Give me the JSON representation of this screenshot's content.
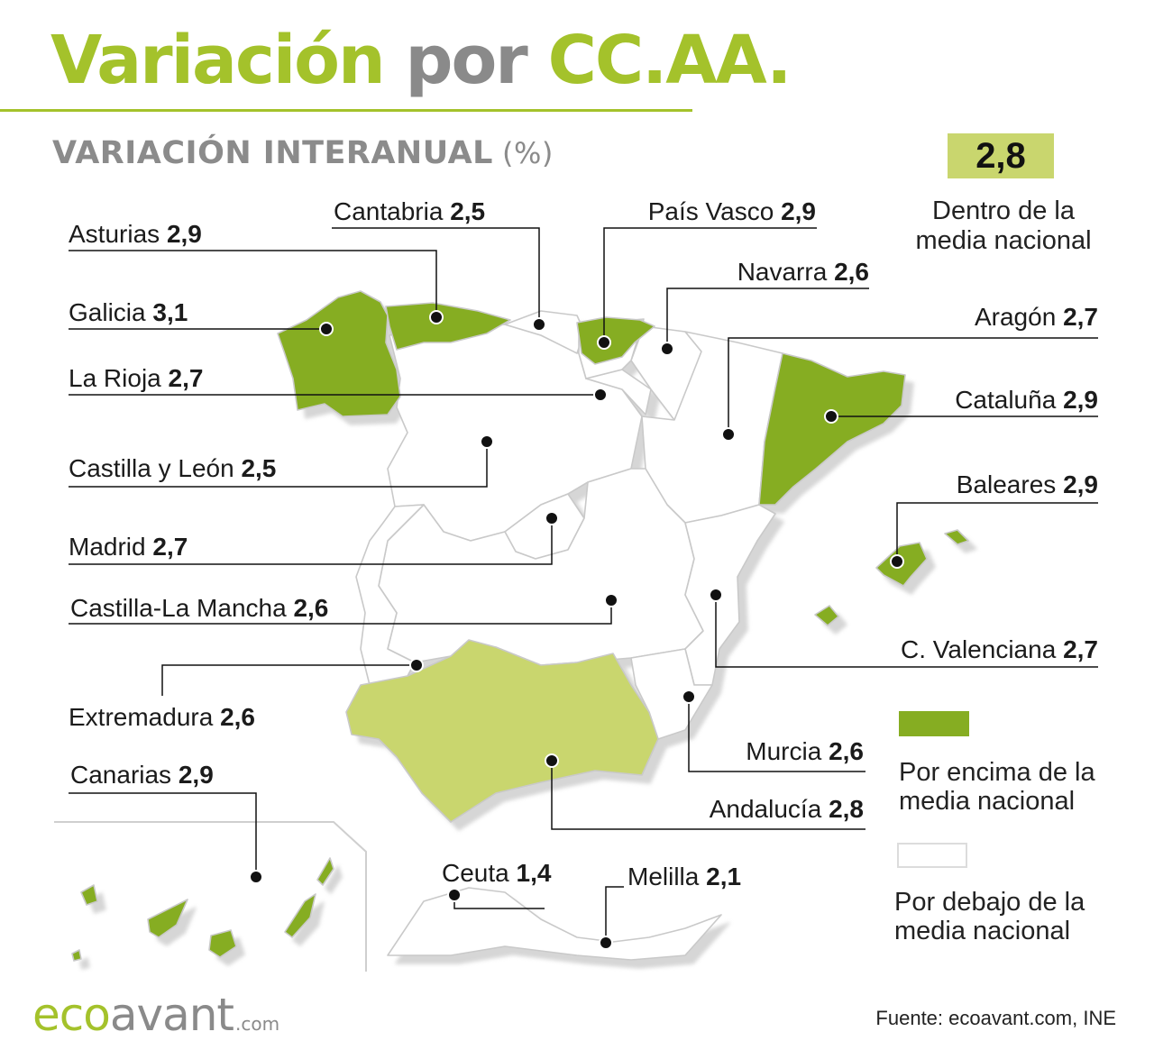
{
  "title": {
    "part1": "Variación",
    "part2": "por",
    "part3": "CC.AA."
  },
  "subtitle": {
    "text": "VARIACIÓN INTERANUAL",
    "unit": "(%)"
  },
  "national": {
    "value": "2,8",
    "caption": "Dentro de la media nacional"
  },
  "regions": {
    "asturias": {
      "name": "Asturias",
      "value": "2,9"
    },
    "cantabria": {
      "name": "Cantabria",
      "value": "2,5"
    },
    "pais_vasco": {
      "name": "País Vasco",
      "value": "2,9"
    },
    "navarra": {
      "name": "Navarra",
      "value": "2,6"
    },
    "galicia": {
      "name": "Galicia",
      "value": "3,1"
    },
    "aragon": {
      "name": "Aragón",
      "value": "2,7"
    },
    "la_rioja": {
      "name": "La Rioja",
      "value": "2,7"
    },
    "cataluna": {
      "name": "Cataluña",
      "value": "2,9"
    },
    "castilla_leon": {
      "name": "Castilla y León",
      "value": "2,5"
    },
    "baleares": {
      "name": "Baleares",
      "value": "2,9"
    },
    "madrid": {
      "name": "Madrid",
      "value": "2,7"
    },
    "castilla_mancha": {
      "name": "Castilla-La Mancha",
      "value": "2,6"
    },
    "valenciana": {
      "name": "C. Valenciana",
      "value": "2,7"
    },
    "extremadura": {
      "name": "Extremadura",
      "value": "2,6"
    },
    "murcia": {
      "name": "Murcia",
      "value": "2,6"
    },
    "canarias": {
      "name": "Canarias",
      "value": "2,9"
    },
    "andalucia": {
      "name": "Andalucía",
      "value": "2,8"
    },
    "ceuta": {
      "name": "Ceuta",
      "value": "1,4"
    },
    "melilla": {
      "name": "Melilla",
      "value": "2,1"
    }
  },
  "legend": {
    "above": "Por encima de la media nacional",
    "below": "Por debajo de la media nacional"
  },
  "colors": {
    "above": "#86ad22",
    "national": "#c9d66e",
    "below": "#ffffff",
    "accent": "#a4c22b"
  },
  "logo": {
    "eco": "eco",
    "avant": "avant",
    "domain": ".com"
  },
  "source": "Fuente: ecoavant.com, INE"
}
